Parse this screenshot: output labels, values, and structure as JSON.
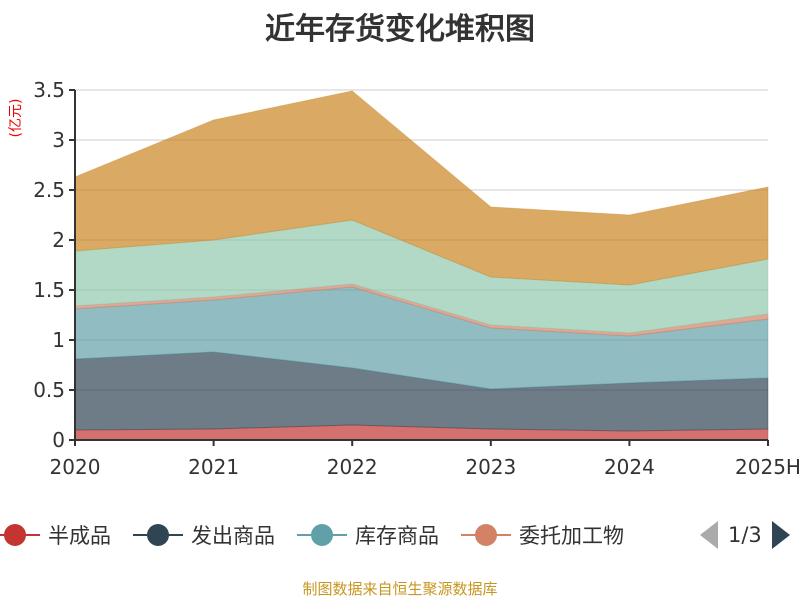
{
  "chart_data": {
    "type": "area",
    "stacked": true,
    "title": "近年存货变化堆积图",
    "ylabel": "(亿元)",
    "xlabel": "",
    "categories": [
      "2020",
      "2021",
      "2022",
      "2023",
      "2024",
      "2025H"
    ],
    "ylim": [
      0,
      3.5
    ],
    "yticks": [
      "0",
      "0.5",
      "1",
      "1.5",
      "2",
      "2.5",
      "3",
      "3.5"
    ],
    "grid": true,
    "legend_position": "bottom",
    "series": [
      {
        "name": "半成品",
        "color": "#c23531",
        "values": [
          0.1,
          0.11,
          0.15,
          0.11,
          0.09,
          0.11
        ]
      },
      {
        "name": "发出商品",
        "color": "#2f4554",
        "values": [
          0.71,
          0.77,
          0.57,
          0.4,
          0.48,
          0.51
        ]
      },
      {
        "name": "库存商品",
        "color": "#61a0a8",
        "values": [
          0.5,
          0.52,
          0.81,
          0.61,
          0.47,
          0.59
        ]
      },
      {
        "name": "委托加工物",
        "color": "#d48265",
        "values": [
          0.03,
          0.03,
          0.03,
          0.03,
          0.03,
          0.05
        ]
      },
      {
        "color": "#91c7ae",
        "values": [
          0.55,
          0.57,
          0.64,
          0.48,
          0.48,
          0.55
        ]
      },
      {
        "color": "#ca8622",
        "values": [
          0.74,
          1.2,
          1.29,
          0.7,
          0.7,
          0.72
        ]
      }
    ]
  },
  "legend": {
    "page": "1/3"
  },
  "footer": "制图数据来自恒生聚源数据库"
}
